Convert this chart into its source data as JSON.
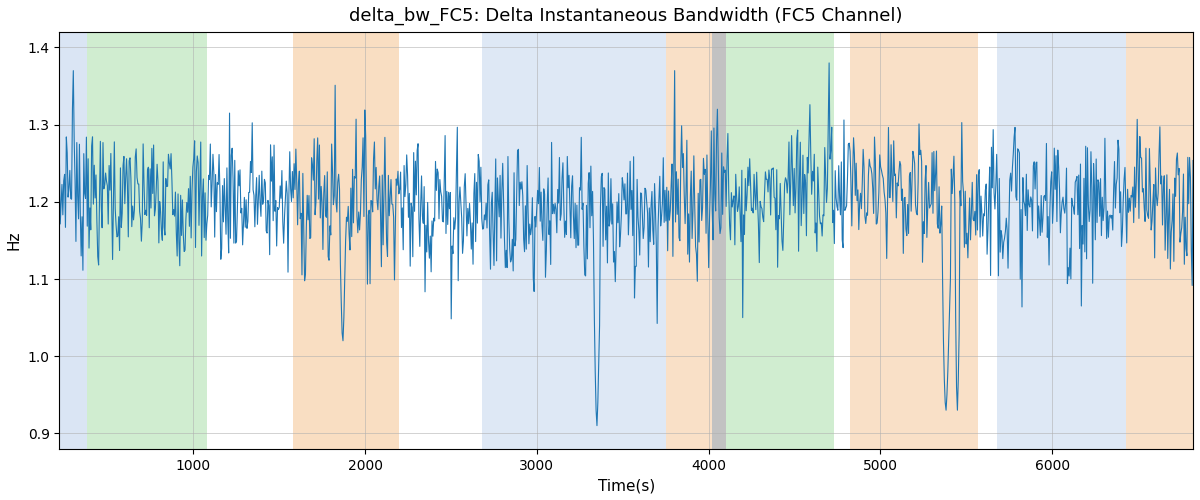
{
  "title": "delta_bw_FC5: Delta Instantaneous Bandwidth (FC5 Channel)",
  "xlabel": "Time(s)",
  "ylabel": "Hz",
  "ylim": [
    0.88,
    1.42
  ],
  "xlim": [
    220,
    6820
  ],
  "line_color": "#1f77b4",
  "line_width": 0.8,
  "bands": [
    {
      "xmin": 220,
      "xmax": 380,
      "color": "#aec6e8",
      "alpha": 0.45
    },
    {
      "xmin": 380,
      "xmax": 1080,
      "color": "#98d898",
      "alpha": 0.45
    },
    {
      "xmin": 1080,
      "xmax": 1130,
      "color": "#ffffff",
      "alpha": 0.0
    },
    {
      "xmin": 1130,
      "xmax": 1580,
      "color": "#ffffff",
      "alpha": 0.0
    },
    {
      "xmin": 1580,
      "xmax": 2200,
      "color": "#f5c89a",
      "alpha": 0.6
    },
    {
      "xmin": 2200,
      "xmax": 2680,
      "color": "#ffffff",
      "alpha": 0.0
    },
    {
      "xmin": 2680,
      "xmax": 3750,
      "color": "#aec6e8",
      "alpha": 0.4
    },
    {
      "xmin": 3750,
      "xmax": 4020,
      "color": "#f5c89a",
      "alpha": 0.55
    },
    {
      "xmin": 4020,
      "xmax": 4100,
      "color": "#909090",
      "alpha": 0.55
    },
    {
      "xmin": 4100,
      "xmax": 4730,
      "color": "#98d898",
      "alpha": 0.45
    },
    {
      "xmin": 4730,
      "xmax": 4820,
      "color": "#ffffff",
      "alpha": 0.0
    },
    {
      "xmin": 4820,
      "xmax": 5570,
      "color": "#f5c89a",
      "alpha": 0.55
    },
    {
      "xmin": 5570,
      "xmax": 5680,
      "color": "#ffffff",
      "alpha": 0.0
    },
    {
      "xmin": 5680,
      "xmax": 6430,
      "color": "#aec6e8",
      "alpha": 0.4
    },
    {
      "xmin": 6430,
      "xmax": 6820,
      "color": "#f5c89a",
      "alpha": 0.55
    }
  ],
  "yticks": [
    0.9,
    1.0,
    1.1,
    1.2,
    1.3,
    1.4
  ],
  "xticks": [
    1000,
    2000,
    3000,
    4000,
    5000,
    6000
  ],
  "title_fontsize": 13,
  "axis_fontsize": 11,
  "tick_fontsize": 10
}
